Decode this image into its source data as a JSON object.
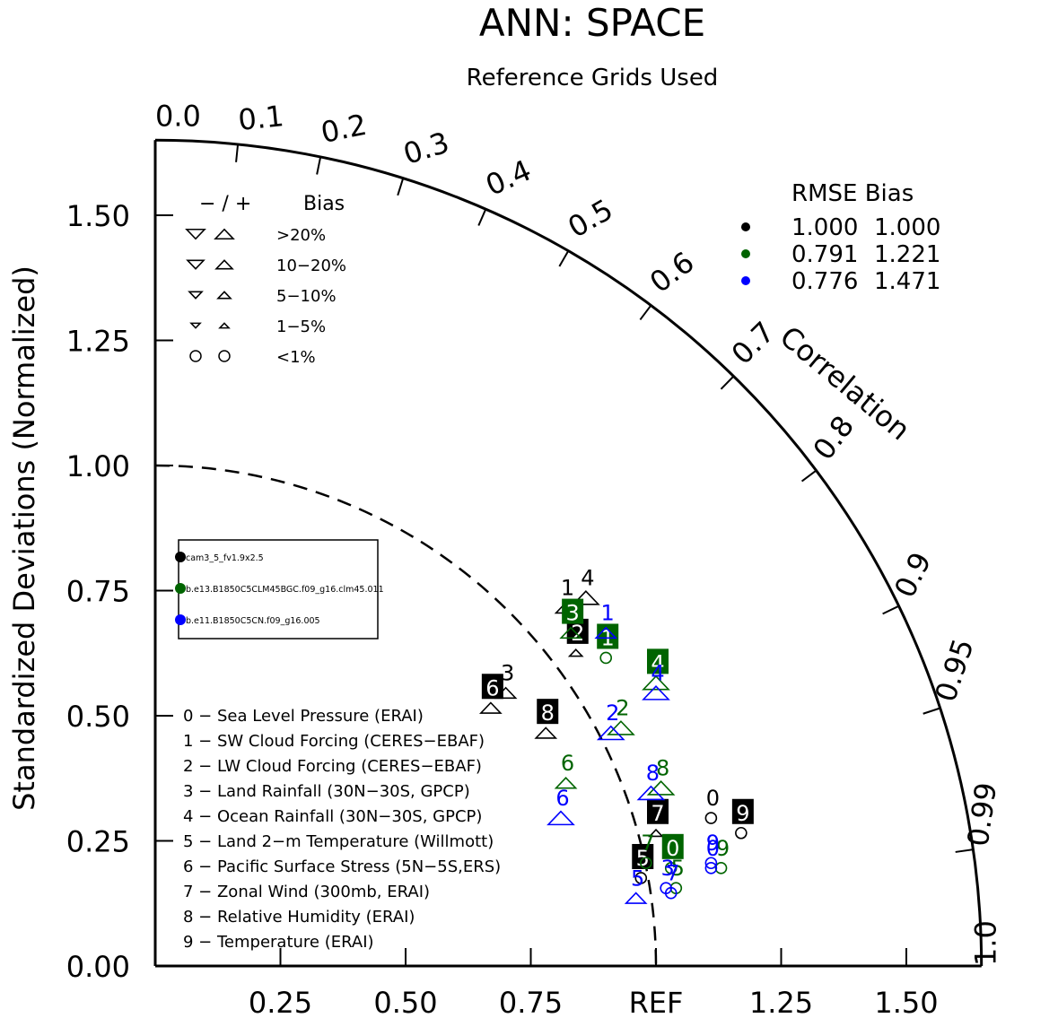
{
  "chart_data": {
    "type": "scatter",
    "subtype": "taylor-diagram",
    "title": "ANN: SPACE",
    "subtitle": "Reference Grids Used",
    "ylabel": "Standardized Deviations (Normalized)",
    "arc_label": "Correlation",
    "ref_label": "REF",
    "y_ticks": [
      "0.00",
      "0.25",
      "0.50",
      "0.75",
      "1.00",
      "1.25",
      "1.50"
    ],
    "x_ticks": [
      "0.25",
      "0.50",
      "0.75",
      "1.25",
      "1.50"
    ],
    "corr_ticks": [
      "0.0",
      "0.1",
      "0.2",
      "0.3",
      "0.4",
      "0.5",
      "0.6",
      "0.7",
      "0.8",
      "0.9",
      "0.95",
      "0.99",
      "1.0"
    ],
    "corr_values": [
      0.0,
      0.1,
      0.2,
      0.3,
      0.4,
      0.5,
      0.6,
      0.7,
      0.8,
      0.9,
      0.95,
      0.99,
      1.0
    ],
    "ylim": [
      0,
      1.65
    ],
    "bias_legend": {
      "header_symbols": "−  /  +",
      "header_label": "Bias",
      "rows": [
        ">20%",
        "10−20%",
        "5−10%",
        "1−5%",
        "<1%"
      ]
    },
    "rmse_legend": {
      "header": "RMSE  Bias",
      "rows": [
        {
          "color": "#000000",
          "rmse": "1.000",
          "bias": "1.000"
        },
        {
          "color": "#006400",
          "rmse": "0.791",
          "bias": "1.221"
        },
        {
          "color": "#0000ff",
          "rmse": "0.776",
          "bias": "1.471"
        }
      ]
    },
    "models": [
      {
        "name": "cam3_5_fv1.9x2.5",
        "color": "#000000"
      },
      {
        "name": "b.e13.B1850C5CLM45BGC.f09_g16.clm45.011",
        "color": "#006400"
      },
      {
        "name": "b.e11.B1850C5CN.f09_g16.005",
        "color": "#0000ff"
      }
    ],
    "variables": [
      "0 − Sea Level Pressure (ERAI)",
      "1 − SW Cloud Forcing (CERES−EBAF)",
      "2 − LW Cloud Forcing (CERES−EBAF)",
      "3 − Land Rainfall (30N−30S, GPCP)",
      "4 − Ocean Rainfall (30N−30S, GPCP)",
      "5 − Land 2−m Temperature (Willmott)",
      "6 − Pacific Surface Stress (5N−5S,ERS)",
      "7 − Zonal Wind (300mb, ERAI)",
      "8 − Relative Humidity (ERAI)",
      "9 − Temperature (ERAI)"
    ],
    "series": [
      {
        "name": "cam3_5_fv1.9x2.5",
        "color": "#000000",
        "points": [
          {
            "label": "0",
            "x": 1.11,
            "y": 0.31,
            "marker": "circle",
            "size": 3,
            "boxed": false
          },
          {
            "label": "1",
            "x": 0.82,
            "y": 0.73,
            "marker": "up",
            "size": 2,
            "boxed": false
          },
          {
            "label": "2",
            "x": 0.84,
            "y": 0.64,
            "marker": "up",
            "size": 1,
            "boxed": true
          },
          {
            "label": "3",
            "x": 0.7,
            "y": 0.56,
            "marker": "up",
            "size": 2,
            "boxed": false
          },
          {
            "label": "4",
            "x": 0.86,
            "y": 0.75,
            "marker": "up",
            "size": 3,
            "boxed": false
          },
          {
            "label": "5",
            "x": 0.97,
            "y": 0.19,
            "marker": "circle",
            "size": 2,
            "boxed": true
          },
          {
            "label": "6",
            "x": 0.67,
            "y": 0.53,
            "marker": "up",
            "size": 2,
            "boxed": true
          },
          {
            "label": "7",
            "x": 1.0,
            "y": 0.28,
            "marker": "up",
            "size": 1,
            "boxed": true
          },
          {
            "label": "8",
            "x": 0.78,
            "y": 0.48,
            "marker": "up",
            "size": 2,
            "boxed": true
          },
          {
            "label": "9",
            "x": 1.17,
            "y": 0.28,
            "marker": "circle",
            "size": 2,
            "boxed": true
          }
        ]
      },
      {
        "name": "b.e13.B1850C5CLM45BGC.f09_g16.clm45.011",
        "color": "#006400",
        "points": [
          {
            "label": "0",
            "x": 1.03,
            "y": 0.21,
            "marker": "circle",
            "size": 2,
            "boxed": true
          },
          {
            "label": "1",
            "x": 0.9,
            "y": 0.63,
            "marker": "circle",
            "size": 2,
            "boxed": true
          },
          {
            "label": "2",
            "x": 0.93,
            "y": 0.49,
            "marker": "up",
            "size": 3,
            "boxed": false
          },
          {
            "label": "3",
            "x": 0.83,
            "y": 0.68,
            "marker": "up",
            "size": 2,
            "boxed": true
          },
          {
            "label": "4",
            "x": 1.0,
            "y": 0.58,
            "marker": "up",
            "size": 3,
            "boxed": true
          },
          {
            "label": "5",
            "x": 1.04,
            "y": 0.17,
            "marker": "circle",
            "size": 2,
            "boxed": false
          },
          {
            "label": "6",
            "x": 0.82,
            "y": 0.38,
            "marker": "up",
            "size": 2,
            "boxed": false
          },
          {
            "label": "7",
            "x": 0.98,
            "y": 0.22,
            "marker": "circle",
            "size": 1,
            "boxed": false
          },
          {
            "label": "8",
            "x": 1.01,
            "y": 0.37,
            "marker": "up",
            "size": 3,
            "boxed": false
          },
          {
            "label": "9",
            "x": 1.13,
            "y": 0.21,
            "marker": "circle",
            "size": 2,
            "boxed": false
          }
        ]
      },
      {
        "name": "b.e11.B1850C5CN.f09_g16.005",
        "color": "#0000ff",
        "points": [
          {
            "label": "0",
            "x": 1.11,
            "y": 0.21,
            "marker": "circle",
            "size": 2,
            "boxed": false
          },
          {
            "label": "1",
            "x": 0.9,
            "y": 0.68,
            "marker": "up",
            "size": 2,
            "boxed": false
          },
          {
            "label": "2",
            "x": 0.91,
            "y": 0.48,
            "marker": "up",
            "size": 3,
            "boxed": false
          },
          {
            "label": "3",
            "x": 1.02,
            "y": 0.17,
            "marker": "circle",
            "size": 2,
            "boxed": false
          },
          {
            "label": "4",
            "x": 1.0,
            "y": 0.56,
            "marker": "up",
            "size": 3,
            "boxed": false
          },
          {
            "label": "5",
            "x": 0.96,
            "y": 0.15,
            "marker": "up",
            "size": 2,
            "boxed": false
          },
          {
            "label": "6",
            "x": 0.81,
            "y": 0.31,
            "marker": "up",
            "size": 3,
            "boxed": false
          },
          {
            "label": "7",
            "x": 1.03,
            "y": 0.16,
            "marker": "circle",
            "size": 2,
            "boxed": false
          },
          {
            "label": "8",
            "x": 0.99,
            "y": 0.36,
            "marker": "up",
            "size": 3,
            "boxed": false
          },
          {
            "label": "9",
            "x": 1.11,
            "y": 0.22,
            "marker": "circle",
            "size": 2,
            "boxed": false
          }
        ]
      }
    ]
  }
}
